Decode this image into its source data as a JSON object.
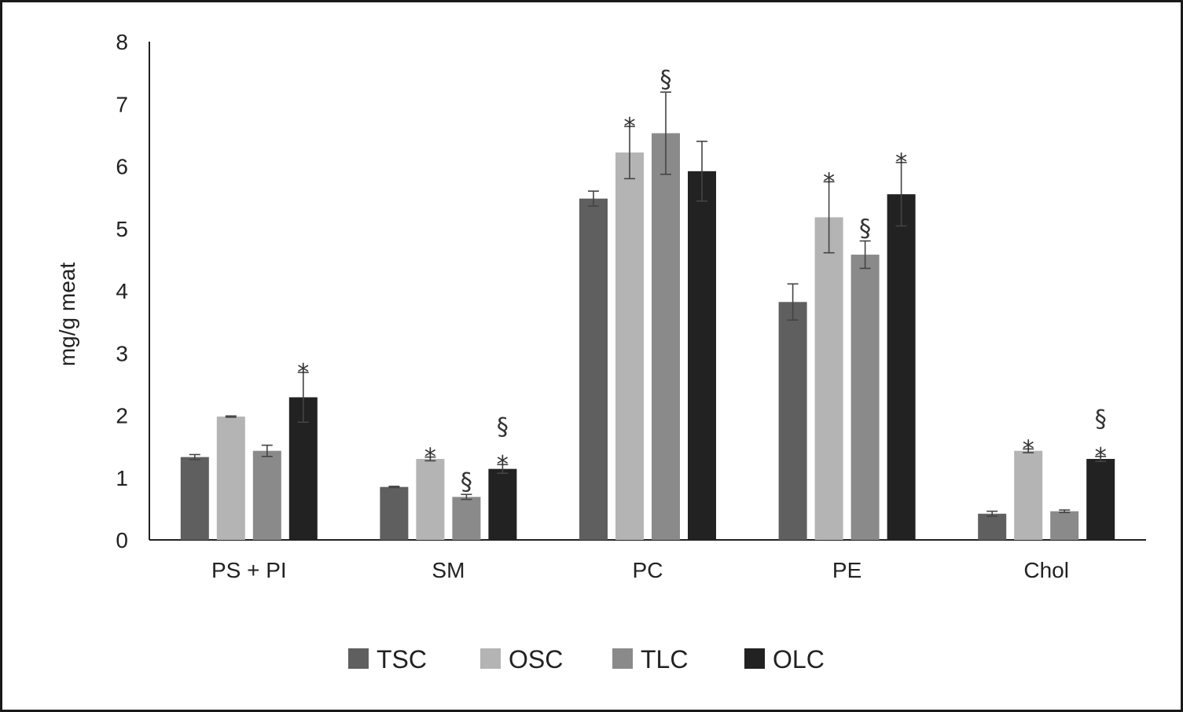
{
  "chart_data": {
    "type": "bar",
    "categories": [
      "PS + PI",
      "SM",
      "PC",
      "PE",
      "Chol"
    ],
    "ylabel": "mg/g meat",
    "xlabel": "",
    "ylim": [
      0,
      8
    ],
    "yticks": [
      0,
      1,
      2,
      3,
      4,
      5,
      6,
      7,
      8
    ],
    "grid": false,
    "legend_position": "bottom",
    "series": [
      {
        "name": "TSC",
        "color": "#5f5f5f",
        "values": [
          1.33,
          0.85,
          5.48,
          3.82,
          0.42
        ],
        "errors": [
          0.04,
          0.01,
          0.12,
          0.29,
          0.04
        ]
      },
      {
        "name": "OSC",
        "color": "#b4b4b4",
        "values": [
          1.98,
          1.3,
          6.22,
          5.18,
          1.43
        ],
        "errors": [
          0.01,
          0.03,
          0.42,
          0.57,
          0.03
        ]
      },
      {
        "name": "TLC",
        "color": "#8a8a8a",
        "values": [
          1.43,
          0.69,
          6.53,
          4.58,
          0.46
        ],
        "errors": [
          0.09,
          0.04,
          0.66,
          0.22,
          0.02
        ]
      },
      {
        "name": "OLC",
        "color": "#222222",
        "values": [
          2.29,
          1.14,
          5.92,
          5.55,
          1.3
        ],
        "errors": [
          0.4,
          0.07,
          0.48,
          0.51,
          0.04
        ]
      }
    ],
    "annotations": [
      {
        "series": "OLC",
        "category": "PS + PI",
        "marks": [
          "*"
        ]
      },
      {
        "series": "OSC",
        "category": "SM",
        "marks": [
          "*"
        ]
      },
      {
        "series": "TLC",
        "category": "SM",
        "marks": [
          "§"
        ]
      },
      {
        "series": "OLC",
        "category": "SM",
        "marks": [
          "*",
          "§"
        ]
      },
      {
        "series": "OSC",
        "category": "PC",
        "marks": [
          "*"
        ]
      },
      {
        "series": "TLC",
        "category": "PC",
        "marks": [
          "§"
        ]
      },
      {
        "series": "OSC",
        "category": "PE",
        "marks": [
          "*"
        ]
      },
      {
        "series": "TLC",
        "category": "PE",
        "marks": [
          "§"
        ]
      },
      {
        "series": "OLC",
        "category": "PE",
        "marks": [
          "*"
        ]
      },
      {
        "series": "OSC",
        "category": "Chol",
        "marks": [
          "*"
        ]
      },
      {
        "series": "OLC",
        "category": "Chol",
        "marks": [
          "*",
          "§"
        ]
      }
    ]
  }
}
